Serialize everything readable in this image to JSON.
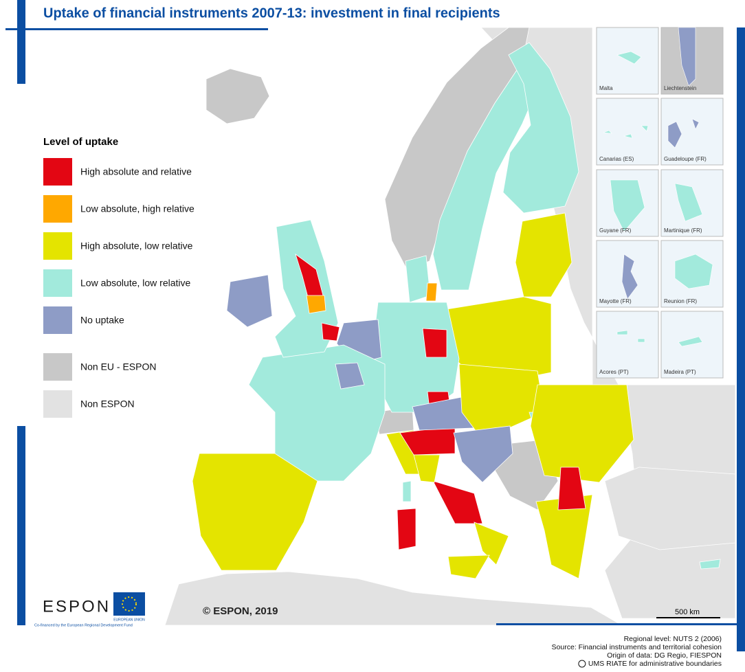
{
  "title": "Uptake of financial instruments 2007-13: investment in final recipients",
  "legend": {
    "title": "Level of uptake",
    "items": [
      {
        "label": "High absolute and relative",
        "color": "#e30613"
      },
      {
        "label": "Low absolute, high relative",
        "color": "#ffa800"
      },
      {
        "label": "High absolute, low relative",
        "color": "#e4e400"
      },
      {
        "label": "Low absolute, low relative",
        "color": "#a2eadc"
      },
      {
        "label": "No uptake",
        "color": "#8e9cc6"
      },
      {
        "label": "Non EU - ESPON",
        "color": "#c8c8c8"
      },
      {
        "label": "Non ESPON",
        "color": "#e2e2e2"
      }
    ]
  },
  "insets": [
    "Malta",
    "Liechtenstein",
    "Canarias (ES)",
    "Guadeloupe (FR)",
    "Guyane (FR)",
    "Martinique (FR)",
    "Mayotte (FR)",
    "Reunion (FR)",
    "Acores (PT)",
    "Madeira (PT)"
  ],
  "copyright": "© ESPON, 2019",
  "scale_bar": "500 km",
  "logo": {
    "espon": "ESPON",
    "eu": "EUROPEAN UNION",
    "cofinanced": "Co-financed by the European Regional Development Fund"
  },
  "footer": [
    "Regional level: NUTS 2 (2006)",
    "Source: Financial instruments and territorial cohesion",
    "Origin of data: DG Regio, FIESPON",
    "UMS RIATE for administrative boundaries"
  ]
}
